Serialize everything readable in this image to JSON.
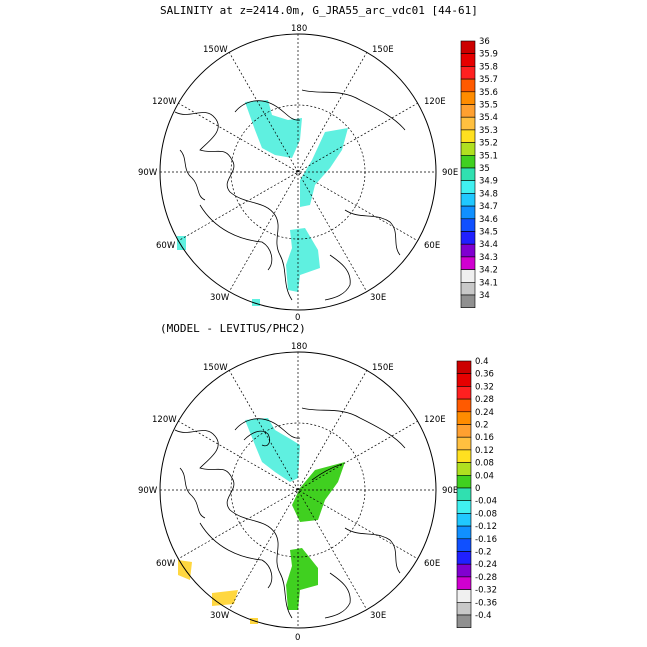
{
  "title": "SALINITY at z=2414.0m, G_JRA55_arc_vdc01 [44-61]",
  "subtitle": "(MODEL - LEVITUS/PHC2)",
  "lon_labels": {
    "l180": "180",
    "l150w": "150W",
    "l150e": "150E",
    "l120w": "120W",
    "l120e": "120E",
    "l90w": "90W",
    "l90e": "90E",
    "l60w": "60W",
    "l60e": "60E",
    "l30w": "30W",
    "l30e": "30E",
    "l0": "0"
  },
  "colorbar_top": {
    "labels": [
      "36",
      "35.9",
      "35.8",
      "35.7",
      "35.6",
      "35.5",
      "35.4",
      "35.3",
      "35.2",
      "35.1",
      "35",
      "34.9",
      "34.8",
      "34.7",
      "34.6",
      "34.5",
      "34.4",
      "34.3",
      "34.2",
      "34.1",
      "34"
    ],
    "colors": [
      "#cc0000",
      "#e60000",
      "#ff2020",
      "#ff5a00",
      "#ff8c00",
      "#ffa030",
      "#ffc040",
      "#ffe020",
      "#b0e020",
      "#40d020",
      "#30e0b0",
      "#40f0f0",
      "#20c8ff",
      "#1090ff",
      "#1050ff",
      "#2020ff",
      "#8000d0",
      "#d000d0",
      "#f0f0f0",
      "#c8c8c8",
      "#909090"
    ]
  },
  "colorbar_bottom": {
    "labels": [
      "0.4",
      "0.36",
      "0.32",
      "0.28",
      "0.24",
      "0.2",
      "0.16",
      "0.12",
      "0.08",
      "0.04",
      "0",
      "-0.04",
      "-0.08",
      "-0.12",
      "-0.16",
      "-0.2",
      "-0.24",
      "-0.28",
      "-0.32",
      "-0.36",
      "-0.4"
    ],
    "colors": [
      "#cc0000",
      "#e60000",
      "#ff2020",
      "#ff5a00",
      "#ff8c00",
      "#ffa030",
      "#ffc040",
      "#ffe020",
      "#b0e020",
      "#40d020",
      "#30e0b0",
      "#40f0f0",
      "#20c8ff",
      "#1090ff",
      "#1050ff",
      "#2020ff",
      "#8000d0",
      "#d000d0",
      "#f0f0f0",
      "#c8c8c8",
      "#909090"
    ]
  },
  "field_colors": {
    "top_patch": "#5ff0e0",
    "bottom_cyan": "#5ff0e0",
    "bottom_green": "#40d020",
    "bottom_yellow": "#ffd740"
  }
}
